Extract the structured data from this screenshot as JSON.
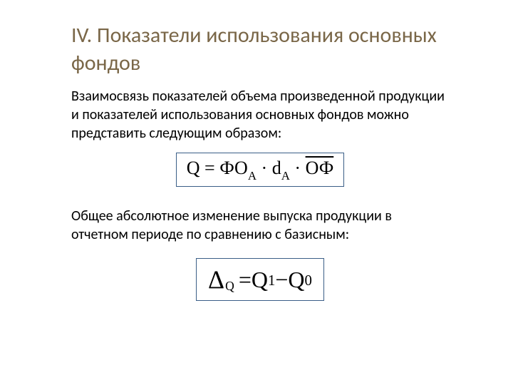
{
  "colors": {
    "title": "#7a6748",
    "border": "#3a5e87",
    "text": "#000000",
    "background": "#ffffff"
  },
  "typography": {
    "title_fontsize": 30,
    "body_fontsize": 20,
    "formula1_fontsize": 26,
    "formula2_fontsize": 32,
    "body_font": "Calibri",
    "formula_font": "Times New Roman"
  },
  "title": "IV. Показатели использования основных фондов",
  "paragraph1": "Взаимосвязь показателей объема произведенной продукции и показателей использования основных фондов можно представить следующим образом:",
  "paragraph2": "Общее абсолютное изменение выпуска продукции в отчетном периоде по сравнению с базисным:",
  "formula1": {
    "lhs": "Q",
    "eq": " = ",
    "t1": "ФО",
    "t1_sub": "А",
    "dot": " · ",
    "t2": "d",
    "t2_sub": "А",
    "dot2": " · ",
    "t3_overline": "ОФ"
  },
  "formula2": {
    "delta": "Δ",
    "delta_sub": "Q",
    "eq": " = ",
    "q1": "Q",
    "q1_sub": "1",
    "minus": " − ",
    "q0": "Q",
    "q0_sub": "0"
  }
}
